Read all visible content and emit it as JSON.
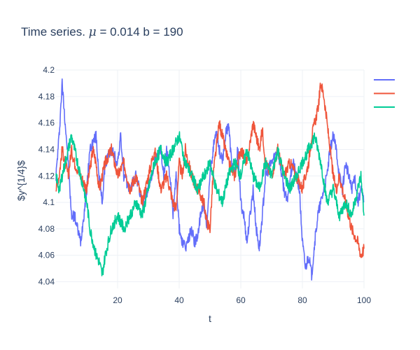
{
  "chart_data": {
    "type": "line",
    "title_prefix": "Time series. ",
    "title_symbol": "μ",
    "title_suffix": " = 0.014 b = 190",
    "xlabel": "t",
    "ylabel": "$y^{1/4}$",
    "xlim": [
      0,
      100
    ],
    "ylim": [
      4.035,
      4.2
    ],
    "xticks": [
      20,
      40,
      60,
      80,
      100
    ],
    "xtick_labels": [
      "20",
      "40",
      "60",
      "80",
      "100"
    ],
    "yticks": [
      4.04,
      4.06,
      4.08,
      4.1,
      4.12,
      4.14,
      4.16,
      4.18,
      4.2
    ],
    "ytick_labels": [
      "4.04",
      "4.06",
      "4.08",
      "4.1",
      "4.12",
      "4.14",
      "4.16",
      "4.18",
      "4.2"
    ],
    "grid": true,
    "legend_position": "top-right",
    "series": [
      {
        "color": "#636efa",
        "x": [
          0,
          1,
          2,
          3,
          4,
          5,
          6,
          8,
          10,
          11,
          13,
          14,
          15,
          16,
          18,
          20,
          21,
          22,
          24,
          26,
          28,
          30,
          32,
          34,
          35,
          36,
          37,
          38,
          39,
          40,
          41,
          42,
          44,
          45,
          46,
          47,
          48,
          49,
          50,
          51,
          52,
          53,
          54,
          55,
          56,
          57,
          58,
          59,
          60,
          61,
          62,
          63,
          64,
          65,
          66,
          67,
          68,
          70,
          72,
          74,
          75,
          76,
          77,
          78,
          79,
          80,
          81,
          82,
          83,
          84,
          85,
          86,
          87,
          88,
          89,
          90,
          91,
          92,
          93,
          94,
          95,
          96,
          97,
          98,
          99,
          100
        ],
        "y": [
          4.12,
          4.15,
          4.19,
          4.16,
          4.13,
          4.09,
          4.09,
          4.07,
          4.11,
          4.14,
          4.15,
          4.12,
          4.1,
          4.13,
          4.14,
          4.13,
          4.15,
          4.12,
          4.11,
          4.12,
          4.1,
          4.11,
          4.13,
          4.14,
          4.12,
          4.14,
          4.12,
          4.09,
          4.12,
          4.08,
          4.07,
          4.065,
          4.08,
          4.07,
          4.075,
          4.09,
          4.1,
          4.08,
          4.12,
          4.14,
          4.155,
          4.14,
          4.13,
          4.15,
          4.16,
          4.13,
          4.12,
          4.14,
          4.1,
          4.09,
          4.07,
          4.09,
          4.11,
          4.08,
          4.065,
          4.09,
          4.12,
          4.13,
          4.14,
          4.11,
          4.1,
          4.12,
          4.13,
          4.12,
          4.11,
          4.07,
          4.05,
          4.06,
          4.045,
          4.07,
          4.09,
          4.1,
          4.11,
          4.12,
          4.14,
          4.15,
          4.14,
          4.12,
          4.11,
          4.13,
          4.12,
          4.11,
          4.12,
          4.1,
          4.11,
          4.1
        ]
      },
      {
        "color": "#ef553b",
        "x": [
          0,
          1,
          2,
          3,
          4,
          5,
          6,
          8,
          10,
          12,
          13,
          14,
          15,
          16,
          18,
          20,
          22,
          24,
          26,
          28,
          30,
          32,
          34,
          36,
          38,
          39,
          40,
          41,
          42,
          44,
          46,
          48,
          49,
          50,
          51,
          52,
          53,
          54,
          56,
          58,
          60,
          62,
          64,
          66,
          67,
          68,
          70,
          72,
          74,
          76,
          78,
          80,
          82,
          83,
          84,
          85,
          86,
          87,
          88,
          89,
          90,
          91,
          92,
          93,
          94,
          95,
          96,
          97,
          98,
          99,
          100
        ],
        "y": [
          4.11,
          4.12,
          4.14,
          4.13,
          4.12,
          4.14,
          4.13,
          4.12,
          4.11,
          4.14,
          4.13,
          4.11,
          4.12,
          4.13,
          4.14,
          4.12,
          4.13,
          4.11,
          4.12,
          4.1,
          4.12,
          4.14,
          4.11,
          4.12,
          4.1,
          4.095,
          4.13,
          4.12,
          4.14,
          4.12,
          4.11,
          4.1,
          4.085,
          4.08,
          4.12,
          4.14,
          4.16,
          4.15,
          4.13,
          4.12,
          4.14,
          4.13,
          4.16,
          4.14,
          4.155,
          4.13,
          4.12,
          4.14,
          4.12,
          4.13,
          4.12,
          4.11,
          4.13,
          4.15,
          4.16,
          4.17,
          4.19,
          4.18,
          4.16,
          4.14,
          4.12,
          4.11,
          4.12,
          4.11,
          4.1,
          4.09,
          4.08,
          4.075,
          4.07,
          4.06,
          4.065
        ]
      },
      {
        "color": "#00cc96",
        "x": [
          0,
          1,
          2,
          3,
          4,
          5,
          6,
          7,
          8,
          10,
          11,
          12,
          13,
          14,
          15,
          16,
          17,
          18,
          20,
          22,
          24,
          26,
          28,
          30,
          32,
          34,
          36,
          38,
          40,
          42,
          44,
          46,
          48,
          50,
          52,
          54,
          56,
          58,
          60,
          62,
          64,
          66,
          68,
          70,
          72,
          74,
          76,
          78,
          80,
          82,
          84,
          86,
          88,
          90,
          92,
          94,
          96,
          98,
          99,
          100
        ],
        "y": [
          4.12,
          4.11,
          4.12,
          4.13,
          4.14,
          4.15,
          4.14,
          4.13,
          4.12,
          4.1,
          4.08,
          4.07,
          4.06,
          4.055,
          4.045,
          4.06,
          4.07,
          4.08,
          4.09,
          4.08,
          4.09,
          4.1,
          4.09,
          4.11,
          4.13,
          4.14,
          4.13,
          4.14,
          4.15,
          4.13,
          4.12,
          4.11,
          4.12,
          4.13,
          4.11,
          4.1,
          4.12,
          4.13,
          4.12,
          4.14,
          4.12,
          4.11,
          4.13,
          4.12,
          4.14,
          4.12,
          4.11,
          4.12,
          4.13,
          4.14,
          4.15,
          4.13,
          4.1,
          4.11,
          4.09,
          4.1,
          4.09,
          4.11,
          4.12,
          4.09
        ]
      }
    ]
  }
}
